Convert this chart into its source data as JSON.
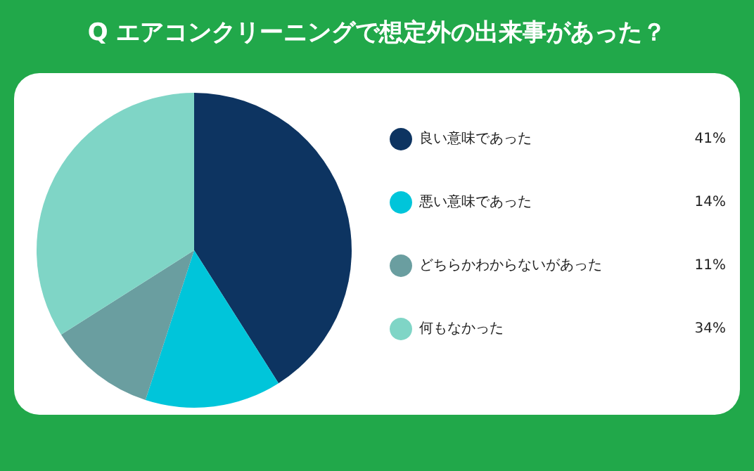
{
  "chart_data": {
    "type": "pie",
    "title": "Q エアコンクリーニングで想定外の出来事があった？",
    "categories": [
      "良い意味であった",
      "悪い意味であった",
      "どちらかわからないがあった",
      "何もなかった"
    ],
    "values": [
      41,
      14,
      11,
      34
    ],
    "value_labels": [
      "41%",
      "14%",
      "11%",
      "34%"
    ],
    "colors": [
      "#0d3461",
      "#00c5da",
      "#6a9ea0",
      "#7fd5c6"
    ],
    "legend": "right"
  }
}
